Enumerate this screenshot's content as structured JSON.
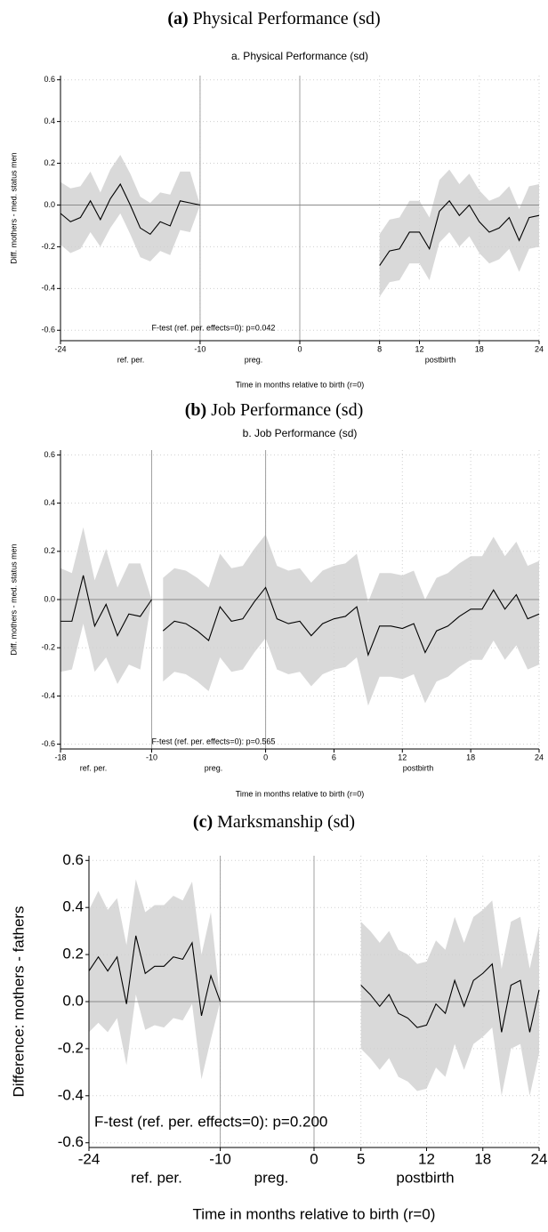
{
  "chart_data": [
    {
      "type": "line",
      "caption_label": "(a)",
      "caption": "Physical Performance (sd)",
      "title": "a. Physical Performance (sd)",
      "y_label": "Diff. mothers - med. status men",
      "x_label": "Time in months relative to birth (r=0)",
      "annotation": "F-test (ref. per. effects=0): p=0.042",
      "period_labels": [
        "ref. per.",
        "preg.",
        "postbirth"
      ],
      "xlim": [
        -24,
        24
      ],
      "xticks": [
        -24,
        -10,
        0,
        8,
        12,
        18,
        24
      ],
      "ylim": [
        -0.65,
        0.62
      ],
      "yticks": [
        -0.6,
        -0.4,
        -0.2,
        {
          "value": 0,
          "label": "0.0"
        },
        0.2,
        0.4,
        0.6
      ],
      "vlines": [
        -10,
        0
      ],
      "hline": 0,
      "grid": true,
      "color": "#000000",
      "band_color": "#d9d9d9",
      "segments": [
        {
          "x": [
            -24,
            -23,
            -22,
            -21,
            -20,
            -19,
            -18,
            -17,
            -16,
            -15,
            -14,
            -13,
            -12,
            -11,
            -10
          ],
          "values": [
            -0.04,
            -0.08,
            -0.06,
            0.02,
            -0.07,
            0.03,
            0.1,
            0.0,
            -0.11,
            -0.14,
            -0.08,
            -0.1,
            0.02,
            0.01,
            0.0
          ],
          "upper": [
            0.11,
            0.08,
            0.09,
            0.16,
            0.06,
            0.17,
            0.24,
            0.15,
            0.04,
            0.01,
            0.06,
            0.05,
            0.16,
            0.16,
            0.0
          ],
          "lower": [
            -0.19,
            -0.23,
            -0.21,
            -0.13,
            -0.2,
            -0.11,
            -0.04,
            -0.14,
            -0.25,
            -0.27,
            -0.22,
            -0.24,
            -0.12,
            -0.13,
            0.0
          ]
        },
        {
          "x": [
            8,
            9,
            10,
            11,
            12,
            13,
            14,
            15,
            16,
            17,
            18,
            19,
            20,
            21,
            22,
            23,
            24
          ],
          "values": [
            -0.29,
            -0.22,
            -0.21,
            -0.13,
            -0.13,
            -0.21,
            -0.03,
            0.02,
            -0.05,
            0.0,
            -0.08,
            -0.13,
            -0.11,
            -0.06,
            -0.17,
            -0.06,
            -0.05
          ],
          "upper": [
            -0.14,
            -0.07,
            -0.06,
            0.02,
            0.02,
            -0.06,
            0.12,
            0.17,
            0.1,
            0.15,
            0.07,
            0.02,
            0.04,
            0.09,
            -0.02,
            0.09,
            0.1
          ],
          "lower": [
            -0.44,
            -0.37,
            -0.36,
            -0.28,
            -0.28,
            -0.36,
            -0.18,
            -0.13,
            -0.2,
            -0.15,
            -0.23,
            -0.28,
            -0.26,
            -0.21,
            -0.32,
            -0.21,
            -0.2
          ]
        }
      ]
    },
    {
      "type": "line",
      "caption_label": "(b)",
      "caption": "Job Performance (sd)",
      "title": "b. Job Performance (sd)",
      "y_label": "Diff. mothers - med. status men",
      "x_label": "Time in months relative to birth (r=0)",
      "annotation": "F-test (ref. per. effects=0): p=0.565",
      "period_labels": [
        "ref. per.",
        "preg.",
        "postbirth"
      ],
      "xlim": [
        -18,
        24
      ],
      "xticks": [
        -18,
        -10,
        0,
        6,
        12,
        18,
        24
      ],
      "ylim": [
        -0.62,
        0.62
      ],
      "yticks": [
        -0.6,
        -0.4,
        -0.2,
        {
          "value": 0,
          "label": "0.0"
        },
        0.2,
        0.4,
        0.6
      ],
      "vlines": [
        -10,
        0
      ],
      "hline": 0,
      "grid": true,
      "color": "#000000",
      "band_color": "#d9d9d9",
      "segments": [
        {
          "x": [
            -18,
            -17,
            -16,
            -15,
            -14,
            -13,
            -12,
            -11,
            -10
          ],
          "values": [
            -0.09,
            -0.09,
            0.1,
            -0.11,
            -0.02,
            -0.15,
            -0.06,
            -0.07,
            0.0
          ],
          "upper": [
            0.13,
            0.11,
            0.3,
            0.08,
            0.21,
            0.05,
            0.15,
            0.15,
            0.0
          ],
          "lower": [
            -0.3,
            -0.29,
            -0.1,
            -0.3,
            -0.24,
            -0.35,
            -0.27,
            -0.29,
            0.0
          ]
        },
        {
          "x": [
            -9,
            -8,
            -7,
            -6,
            -5,
            -4,
            -3,
            -2,
            -1,
            0,
            1,
            2,
            3,
            4,
            5,
            6,
            7,
            8,
            9,
            10,
            11,
            12,
            13,
            14,
            15,
            16,
            17,
            18,
            19,
            20,
            21,
            22,
            23,
            24
          ],
          "values": [
            -0.13,
            -0.09,
            -0.1,
            -0.13,
            -0.17,
            -0.03,
            -0.09,
            -0.08,
            -0.01,
            0.05,
            -0.08,
            -0.1,
            -0.09,
            -0.15,
            -0.1,
            -0.08,
            -0.07,
            -0.03,
            -0.23,
            -0.11,
            -0.11,
            -0.12,
            -0.1,
            -0.22,
            -0.13,
            -0.11,
            -0.07,
            -0.04,
            -0.04,
            0.04,
            -0.04,
            0.02,
            -0.08,
            -0.06
          ],
          "upper": [
            0.09,
            0.13,
            0.12,
            0.09,
            0.05,
            0.19,
            0.13,
            0.14,
            0.21,
            0.27,
            0.14,
            0.12,
            0.13,
            0.07,
            0.12,
            0.14,
            0.15,
            0.19,
            -0.01,
            0.11,
            0.11,
            0.1,
            0.12,
            0.0,
            0.09,
            0.11,
            0.15,
            0.18,
            0.18,
            0.26,
            0.18,
            0.24,
            0.14,
            0.16
          ],
          "lower": [
            -0.34,
            -0.3,
            -0.31,
            -0.34,
            -0.38,
            -0.24,
            -0.3,
            -0.29,
            -0.22,
            -0.16,
            -0.29,
            -0.31,
            -0.3,
            -0.36,
            -0.31,
            -0.29,
            -0.28,
            -0.24,
            -0.44,
            -0.32,
            -0.32,
            -0.33,
            -0.31,
            -0.43,
            -0.34,
            -0.32,
            -0.28,
            -0.25,
            -0.25,
            -0.17,
            -0.25,
            -0.19,
            -0.29,
            -0.27
          ]
        }
      ]
    },
    {
      "type": "line",
      "caption_label": "(c)",
      "caption": "Marksmanship (sd)",
      "y_label": "Difference: mothers - fathers",
      "x_label": "Time in months relative to birth (r=0)",
      "annotation": "F-test (ref. per. effects=0): p=0.200",
      "period_labels": [
        "ref. per.",
        "preg.",
        "postbirth"
      ],
      "xlim": [
        -24,
        24
      ],
      "xticks": [
        -24,
        -10,
        0,
        5,
        12,
        18,
        24
      ],
      "ylim": [
        -0.62,
        0.62
      ],
      "yticks": [
        -0.6,
        -0.4,
        -0.2,
        {
          "value": 0,
          "label": "0.0"
        },
        0.2,
        0.4,
        0.6
      ],
      "vlines": [
        -10,
        0
      ],
      "hline": 0,
      "grid": true,
      "color": "#000000",
      "band_color": "#d9d9d9",
      "segments": [
        {
          "x": [
            -24,
            -23,
            -22,
            -21,
            -20,
            -19,
            -18,
            -17,
            -16,
            -15,
            -14,
            -13,
            -12,
            -11,
            -10
          ],
          "values": [
            0.13,
            0.19,
            0.13,
            0.19,
            -0.01,
            0.28,
            0.12,
            0.15,
            0.15,
            0.19,
            0.18,
            0.25,
            -0.06,
            0.11,
            0.0
          ],
          "upper": [
            0.39,
            0.47,
            0.39,
            0.44,
            0.24,
            0.52,
            0.38,
            0.41,
            0.41,
            0.45,
            0.43,
            0.51,
            0.2,
            0.38,
            0.0
          ],
          "lower": [
            -0.13,
            -0.09,
            -0.13,
            -0.07,
            -0.27,
            0.03,
            -0.12,
            -0.1,
            -0.11,
            -0.07,
            -0.08,
            -0.01,
            -0.33,
            -0.16,
            0.0
          ]
        },
        {
          "x": [
            5,
            6,
            7,
            8,
            9,
            10,
            11,
            12,
            13,
            14,
            15,
            16,
            17,
            18,
            19,
            20,
            21,
            22,
            23,
            24
          ],
          "values": [
            0.07,
            0.03,
            -0.02,
            0.03,
            -0.05,
            -0.07,
            -0.11,
            -0.1,
            -0.01,
            -0.05,
            0.09,
            -0.02,
            0.09,
            0.12,
            0.16,
            -0.13,
            0.07,
            0.09,
            -0.13,
            0.05
          ],
          "upper": [
            0.34,
            0.3,
            0.25,
            0.3,
            0.22,
            0.2,
            0.16,
            0.17,
            0.26,
            0.22,
            0.36,
            0.25,
            0.36,
            0.39,
            0.43,
            0.14,
            0.34,
            0.36,
            0.14,
            0.32
          ],
          "lower": [
            -0.2,
            -0.24,
            -0.29,
            -0.24,
            -0.32,
            -0.34,
            -0.38,
            -0.37,
            -0.28,
            -0.32,
            -0.18,
            -0.29,
            -0.18,
            -0.15,
            -0.11,
            -0.4,
            -0.2,
            -0.18,
            -0.4,
            -0.22
          ]
        }
      ]
    }
  ]
}
